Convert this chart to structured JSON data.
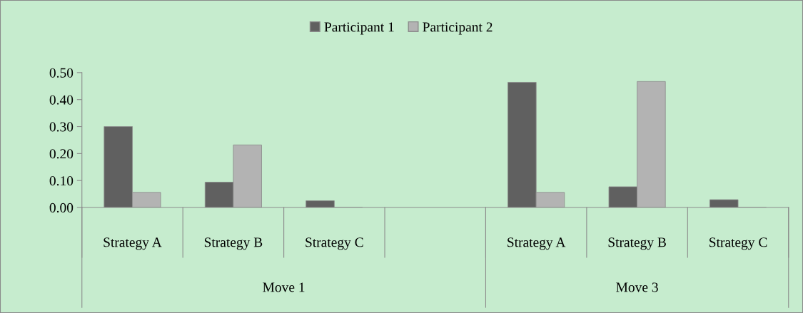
{
  "chart_data": {
    "type": "bar",
    "categories": [
      "Strategy A",
      "Strategy B",
      "Strategy C",
      null,
      "Strategy A",
      "Strategy B",
      "Strategy C"
    ],
    "series": [
      {
        "name": "Participant 1",
        "color": "#606060",
        "values": [
          0.3,
          0.094,
          0.025,
          null,
          0.464,
          0.077,
          0.029
        ]
      },
      {
        "name": "Participant 2",
        "color": "#b3b3b3",
        "values": [
          0.056,
          0.232,
          0,
          null,
          0.056,
          0.467,
          0
        ]
      }
    ],
    "ylim": [
      0,
      0.5
    ],
    "yticks": [
      {
        "value": 0,
        "label": "0.00"
      },
      {
        "value": 0.1,
        "label": "0.10"
      },
      {
        "value": 0.2,
        "label": "0.20"
      },
      {
        "value": 0.3,
        "label": "0.30"
      },
      {
        "value": 0.4,
        "label": "0.40"
      },
      {
        "value": 0.5,
        "label": "0.50"
      }
    ],
    "annotations": [
      "Move 1",
      "Move 3"
    ],
    "legend": "top",
    "grid": false
  }
}
